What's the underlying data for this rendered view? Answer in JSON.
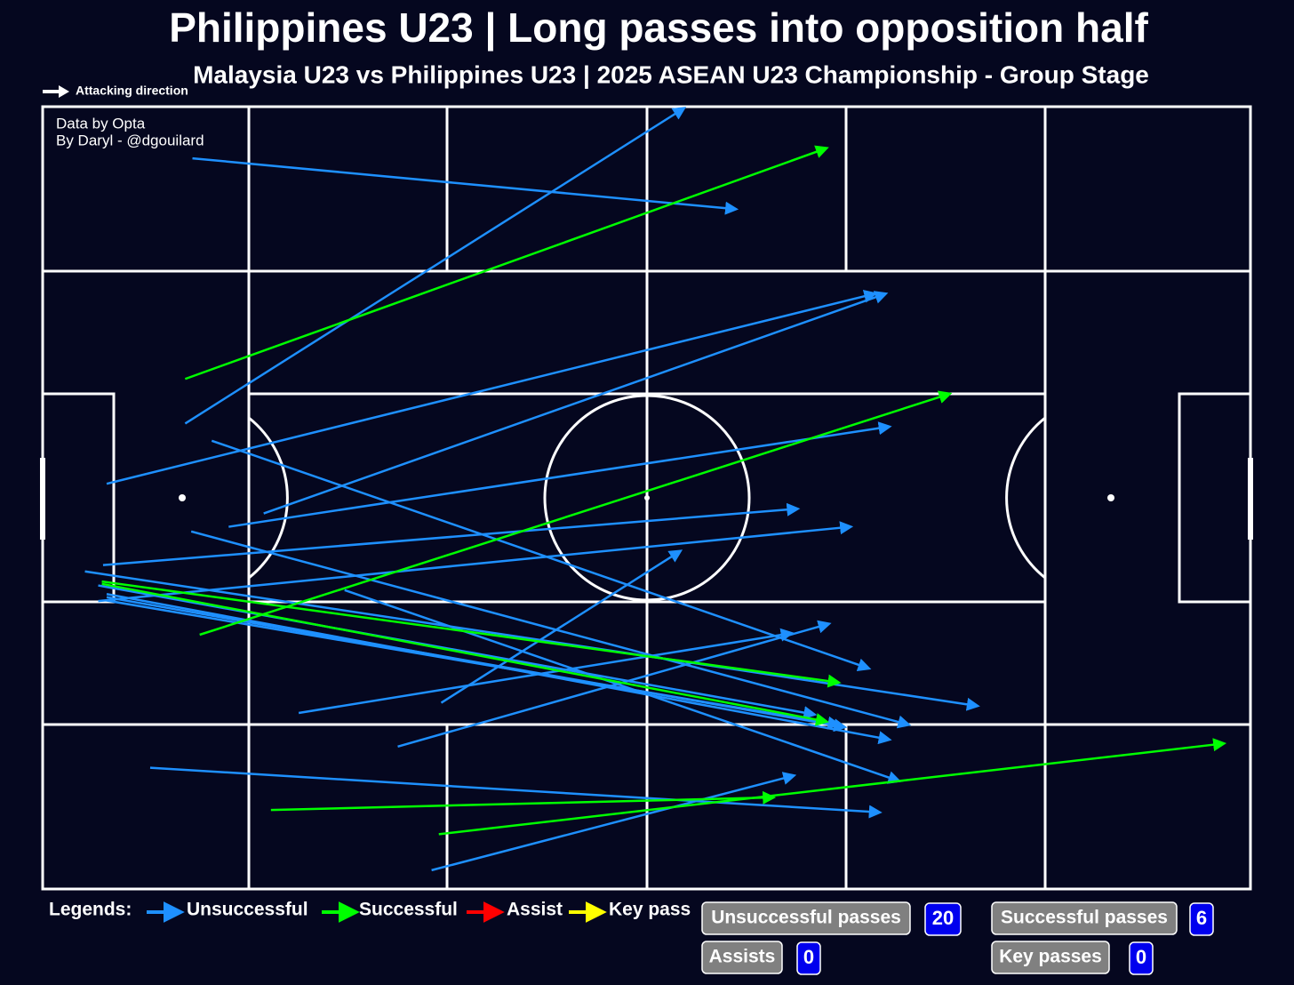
{
  "chart_data": {
    "type": "pass-map",
    "title": "Philippines U23 | Long passes into opposition half",
    "subtitle": "Malaysia U23 vs Philippines U23 | 2025 ASEAN U23 Championship - Group Stage",
    "direction_label": "Attacking direction",
    "credits": [
      "Data by Opta",
      "By Daryl - @dgouilard"
    ],
    "xlim": [
      0,
      100
    ],
    "ylim": [
      0,
      100
    ],
    "legend_title": "Legends:",
    "legend": [
      {
        "name": "Unsuccessful",
        "color": "#1e90ff"
      },
      {
        "name": "Successful",
        "color": "#00ff00"
      },
      {
        "name": "Assist",
        "color": "#ff0000"
      },
      {
        "name": "Key pass",
        "color": "#ffff00"
      }
    ],
    "series": [
      {
        "name": "Unsuccessful",
        "color": "#1e90ff",
        "passes": [
          [
            12.4,
            93.4,
            57.4,
            86.9
          ],
          [
            11.8,
            59.5,
            53.1,
            99.8
          ],
          [
            5.3,
            51.8,
            68.9,
            76.1
          ],
          [
            18.3,
            48.0,
            69.8,
            76.1
          ],
          [
            15.4,
            46.3,
            70.1,
            59.1
          ],
          [
            14.0,
            57.3,
            68.4,
            28.2
          ],
          [
            5.0,
            41.4,
            62.5,
            48.6
          ],
          [
            4.6,
            36.8,
            66.9,
            46.3
          ],
          [
            12.3,
            45.7,
            71.7,
            21.0
          ],
          [
            3.5,
            40.6,
            77.4,
            23.4
          ],
          [
            4.6,
            38.8,
            63.9,
            22.3
          ],
          [
            5.2,
            36.9,
            65.9,
            21.0
          ],
          [
            5.3,
            37.3,
            66.4,
            20.7
          ],
          [
            5.3,
            37.7,
            70.1,
            19.1
          ],
          [
            33.0,
            23.8,
            52.8,
            43.2
          ],
          [
            21.2,
            22.5,
            62.0,
            32.7
          ],
          [
            29.4,
            18.2,
            65.1,
            33.9
          ],
          [
            8.9,
            15.5,
            69.3,
            9.8
          ],
          [
            32.2,
            2.4,
            62.2,
            14.5
          ],
          [
            25.0,
            38.2,
            70.9,
            13.8
          ]
        ]
      },
      {
        "name": "Successful",
        "color": "#00ff00",
        "passes": [
          [
            11.8,
            65.2,
            64.9,
            94.7
          ],
          [
            13.0,
            32.5,
            75.1,
            63.3
          ],
          [
            4.9,
            39.3,
            65.9,
            26.4
          ],
          [
            4.9,
            39.0,
            64.9,
            21.4
          ],
          [
            18.9,
            10.1,
            60.5,
            11.7
          ],
          [
            32.8,
            7.0,
            97.8,
            18.6
          ]
        ]
      }
    ],
    "stats": [
      {
        "label": "Unsuccessful passes",
        "value": 20
      },
      {
        "label": "Successful passes",
        "value": 6
      },
      {
        "label": "Assists",
        "value": 0
      },
      {
        "label": "Key passes",
        "value": 0
      }
    ]
  }
}
